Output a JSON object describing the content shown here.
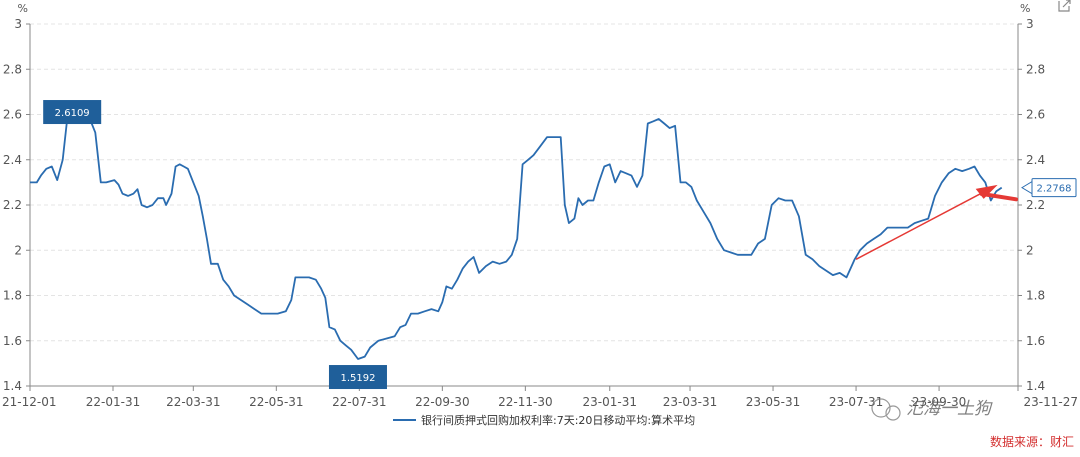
{
  "chart_data": {
    "type": "line",
    "ylabel_left": "%",
    "ylabel_right": "%",
    "ylim": [
      1.4,
      3.0
    ],
    "yticks": [
      "1.4",
      "1.6",
      "1.8",
      "2",
      "2.2",
      "2.4",
      "2.6",
      "2.8",
      "3"
    ],
    "xticks": [
      "21-12-01",
      "22-01-31",
      "22-03-31",
      "22-05-31",
      "22-07-31",
      "22-09-30",
      "22-11-30",
      "23-01-31",
      "23-03-31",
      "23-05-31",
      "23-07-31",
      "23-09-30",
      "23-11-27"
    ],
    "x_tick_days": [
      0,
      61,
      120,
      181,
      242,
      303,
      364,
      426,
      485,
      546,
      607,
      668,
      726
    ],
    "grid": true,
    "legend_position": "bottom",
    "series": [
      {
        "name": "银行间质押式回购加权利率:7天:20日移动平均:算术平均",
        "color": "#2a6cb0",
        "points": [
          [
            0,
            2.3
          ],
          [
            5,
            2.3
          ],
          [
            8,
            2.33
          ],
          [
            12,
            2.36
          ],
          [
            16,
            2.37
          ],
          [
            20,
            2.31
          ],
          [
            24,
            2.4
          ],
          [
            27,
            2.56
          ],
          [
            31,
            2.6109
          ],
          [
            38,
            2.6
          ],
          [
            44,
            2.58
          ],
          [
            48,
            2.52
          ],
          [
            52,
            2.3
          ],
          [
            56,
            2.3
          ],
          [
            62,
            2.31
          ],
          [
            65,
            2.29
          ],
          [
            68,
            2.25
          ],
          [
            72,
            2.24
          ],
          [
            76,
            2.25
          ],
          [
            79,
            2.27
          ],
          [
            82,
            2.2
          ],
          [
            86,
            2.19
          ],
          [
            90,
            2.2
          ],
          [
            94,
            2.23
          ],
          [
            98,
            2.23
          ],
          [
            100,
            2.2
          ],
          [
            104,
            2.25
          ],
          [
            107,
            2.37
          ],
          [
            110,
            2.38
          ],
          [
            113,
            2.37
          ],
          [
            116,
            2.36
          ],
          [
            120,
            2.3
          ],
          [
            124,
            2.24
          ],
          [
            127,
            2.15
          ],
          [
            130,
            2.05
          ],
          [
            133,
            1.94
          ],
          [
            138,
            1.94
          ],
          [
            142,
            1.87
          ],
          [
            146,
            1.84
          ],
          [
            150,
            1.8
          ],
          [
            155,
            1.78
          ],
          [
            160,
            1.76
          ],
          [
            165,
            1.74
          ],
          [
            170,
            1.72
          ],
          [
            176,
            1.72
          ],
          [
            182,
            1.72
          ],
          [
            188,
            1.73
          ],
          [
            192,
            1.78
          ],
          [
            195,
            1.88
          ],
          [
            200,
            1.88
          ],
          [
            205,
            1.88
          ],
          [
            210,
            1.87
          ],
          [
            214,
            1.83
          ],
          [
            217,
            1.79
          ],
          [
            220,
            1.66
          ],
          [
            224,
            1.65
          ],
          [
            228,
            1.6
          ],
          [
            232,
            1.58
          ],
          [
            236,
            1.56
          ],
          [
            241,
            1.5192
          ],
          [
            246,
            1.53
          ],
          [
            250,
            1.57
          ],
          [
            256,
            1.6
          ],
          [
            262,
            1.61
          ],
          [
            268,
            1.62
          ],
          [
            272,
            1.66
          ],
          [
            276,
            1.67
          ],
          [
            280,
            1.72
          ],
          [
            285,
            1.72
          ],
          [
            290,
            1.73
          ],
          [
            295,
            1.74
          ],
          [
            300,
            1.73
          ],
          [
            303,
            1.77
          ],
          [
            306,
            1.84
          ],
          [
            310,
            1.83
          ],
          [
            314,
            1.87
          ],
          [
            318,
            1.92
          ],
          [
            322,
            1.95
          ],
          [
            326,
            1.97
          ],
          [
            330,
            1.9
          ],
          [
            335,
            1.93
          ],
          [
            340,
            1.95
          ],
          [
            345,
            1.94
          ],
          [
            350,
            1.95
          ],
          [
            354,
            1.98
          ],
          [
            358,
            2.05
          ],
          [
            362,
            2.38
          ],
          [
            366,
            2.4
          ],
          [
            370,
            2.42
          ],
          [
            375,
            2.46
          ],
          [
            380,
            2.5
          ],
          [
            385,
            2.5
          ],
          [
            390,
            2.5
          ],
          [
            393,
            2.2
          ],
          [
            396,
            2.12
          ],
          [
            400,
            2.14
          ],
          [
            403,
            2.23
          ],
          [
            406,
            2.2
          ],
          [
            410,
            2.22
          ],
          [
            414,
            2.22
          ],
          [
            418,
            2.3
          ],
          [
            422,
            2.37
          ],
          [
            426,
            2.38
          ],
          [
            430,
            2.3
          ],
          [
            434,
            2.35
          ],
          [
            438,
            2.34
          ],
          [
            442,
            2.33
          ],
          [
            446,
            2.28
          ],
          [
            450,
            2.33
          ],
          [
            454,
            2.56
          ],
          [
            458,
            2.57
          ],
          [
            462,
            2.58
          ],
          [
            466,
            2.56
          ],
          [
            470,
            2.54
          ],
          [
            474,
            2.55
          ],
          [
            478,
            2.3
          ],
          [
            482,
            2.3
          ],
          [
            486,
            2.28
          ],
          [
            490,
            2.22
          ],
          [
            495,
            2.17
          ],
          [
            500,
            2.12
          ],
          [
            505,
            2.05
          ],
          [
            510,
            2.0
          ],
          [
            515,
            1.99
          ],
          [
            520,
            1.98
          ],
          [
            525,
            1.98
          ],
          [
            530,
            1.98
          ],
          [
            535,
            2.03
          ],
          [
            540,
            2.05
          ],
          [
            545,
            2.2
          ],
          [
            550,
            2.23
          ],
          [
            555,
            2.22
          ],
          [
            560,
            2.22
          ],
          [
            565,
            2.15
          ],
          [
            570,
            1.98
          ],
          [
            575,
            1.96
          ],
          [
            580,
            1.93
          ],
          [
            585,
            1.91
          ],
          [
            590,
            1.89
          ],
          [
            595,
            1.9
          ],
          [
            600,
            1.88
          ],
          [
            603,
            1.92
          ],
          [
            606,
            1.96
          ],
          [
            610,
            2.0
          ],
          [
            615,
            2.03
          ],
          [
            620,
            2.05
          ],
          [
            625,
            2.07
          ],
          [
            630,
            2.1
          ],
          [
            635,
            2.1
          ],
          [
            640,
            2.1
          ],
          [
            645,
            2.1
          ],
          [
            650,
            2.12
          ],
          [
            655,
            2.13
          ],
          [
            660,
            2.14
          ],
          [
            665,
            2.24
          ],
          [
            670,
            2.3
          ],
          [
            675,
            2.34
          ],
          [
            680,
            2.36
          ],
          [
            685,
            2.35
          ],
          [
            690,
            2.36
          ],
          [
            694,
            2.37
          ],
          [
            698,
            2.33
          ],
          [
            702,
            2.3
          ],
          [
            706,
            2.22
          ],
          [
            710,
            2.26
          ],
          [
            714,
            2.2768
          ]
        ]
      }
    ],
    "annotations": [
      {
        "label": "2.6109",
        "day": 31,
        "value": 2.6109,
        "style": "box-filled"
      },
      {
        "label": "1.5192",
        "day": 241,
        "value": 1.5192,
        "style": "box-filled"
      },
      {
        "label": "2.2768",
        "day": 714,
        "value": 2.2768,
        "style": "box-outline"
      }
    ],
    "trend_arrow": {
      "from": [
        607,
        1.96
      ],
      "to": [
        714,
        2.28
      ],
      "color": "#e53935"
    }
  },
  "watermark": "氾海一土狗",
  "source": "数据来源：财汇",
  "icons": {
    "export": "export-icon"
  }
}
